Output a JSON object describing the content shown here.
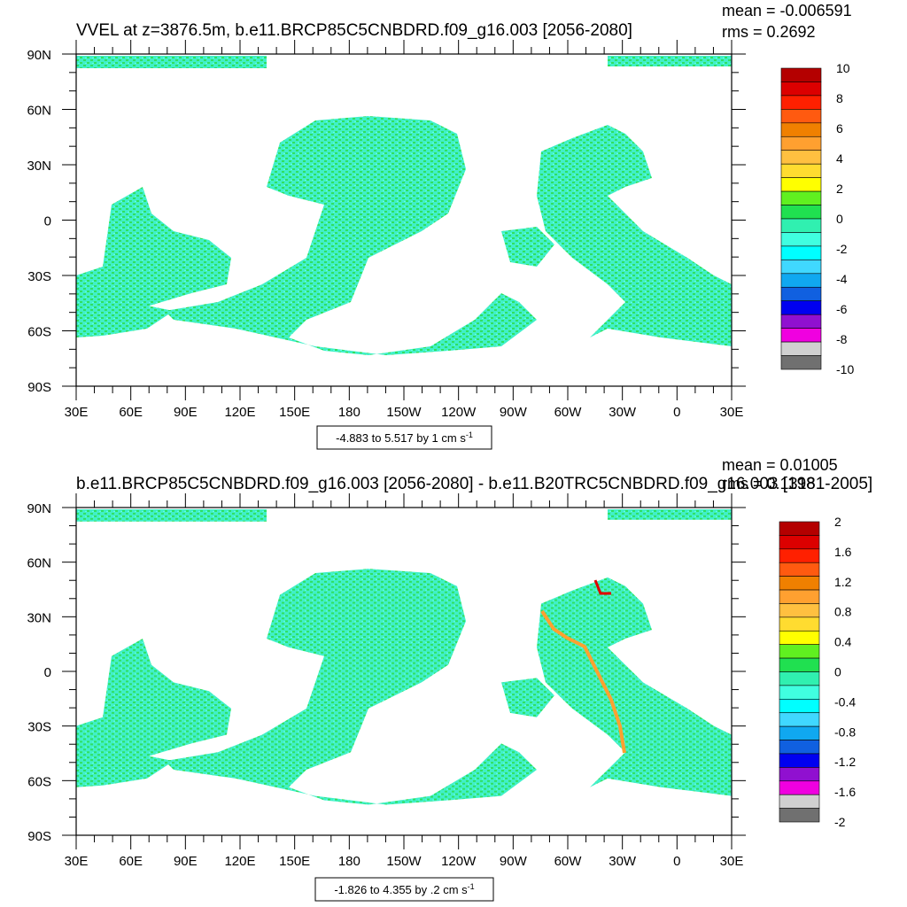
{
  "panels": [
    {
      "title": "VVEL at z=3876.5m, b.e11.BRCP85C5CNBDRD.f09_g16.003 [2056-2080]",
      "mean": "mean = -0.006591",
      "rms": "rms = 0.2692",
      "lat_labels": [
        "90N",
        "60N",
        "30N",
        "0",
        "30S",
        "60S",
        "90S"
      ],
      "lon_labels": [
        "30E",
        "60E",
        "90E",
        "120E",
        "150E",
        "180",
        "150W",
        "120W",
        "90W",
        "60W",
        "30W",
        "0",
        "30E"
      ],
      "colorbar": {
        "labels": [
          "10",
          "8",
          "6",
          "4",
          "2",
          "0",
          "-2",
          "-4",
          "-6",
          "-8",
          "-10"
        ],
        "colors": [
          "#b40000",
          "#dc0000",
          "#ff2000",
          "#ff5a10",
          "#f08000",
          "#ffa030",
          "#ffc040",
          "#ffdc30",
          "#ffff00",
          "#60f020",
          "#20e050",
          "#30f0b0",
          "#40ffe0",
          "#00ffff",
          "#40d8ff",
          "#10a8f0",
          "#1060e0",
          "#0000f0",
          "#9010d0",
          "#f000e0",
          "#d0d0d0",
          "#707070"
        ]
      },
      "info": {
        "text": "-4.883 to 5.517 by 1 cm s",
        "superscript": "-1"
      }
    },
    {
      "title": "b.e11.BRCP85C5CNBDRD.f09_g16.003 [2056-2080] - b.e11.B20TRC5CNBDRD.f09_g16.003 [1981-2005]",
      "mean": "mean = 0.01005",
      "rms": "rms = 0.1318",
      "lat_labels": [
        "90N",
        "60N",
        "30N",
        "0",
        "30S",
        "60S",
        "90S"
      ],
      "lon_labels": [
        "30E",
        "60E",
        "90E",
        "120E",
        "150E",
        "180",
        "150W",
        "120W",
        "90W",
        "60W",
        "30W",
        "0",
        "30E"
      ],
      "colorbar": {
        "labels": [
          "2",
          "1.6",
          "1.2",
          "0.8",
          "0.4",
          "0",
          "-0.4",
          "-0.8",
          "-1.2",
          "-1.6",
          "-2"
        ],
        "colors": [
          "#b40000",
          "#dc0000",
          "#ff2000",
          "#ff5a10",
          "#f08000",
          "#ffa030",
          "#ffc040",
          "#ffdc30",
          "#ffff00",
          "#60f020",
          "#20e050",
          "#30f0b0",
          "#40ffe0",
          "#00ffff",
          "#40d8ff",
          "#10a8f0",
          "#1060e0",
          "#0000f0",
          "#9010d0",
          "#f000e0",
          "#d0d0d0",
          "#707070"
        ]
      },
      "info": {
        "text": "-1.826 to 4.355 by .2 cm s",
        "superscript": "-1"
      }
    }
  ]
}
